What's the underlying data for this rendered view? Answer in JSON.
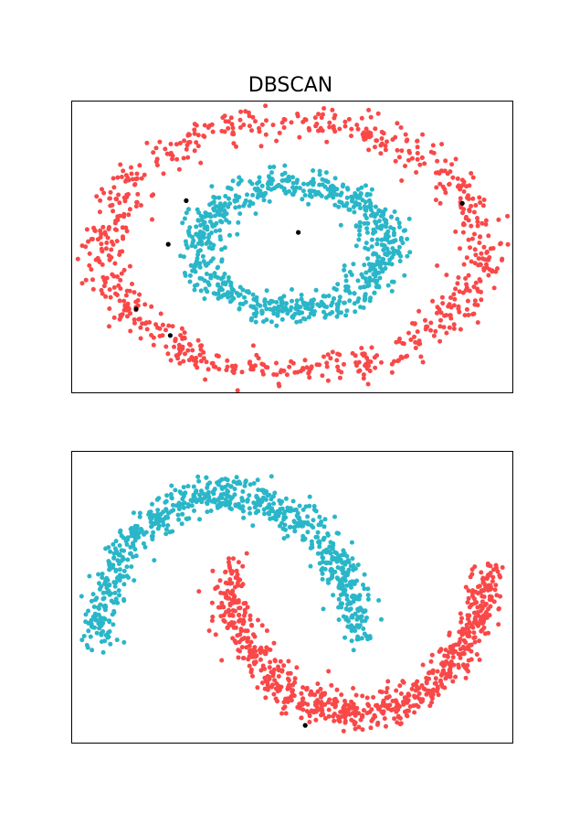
{
  "figure": {
    "title": "DBSCAN"
  },
  "colors": {
    "cluster_red": "#f94848",
    "cluster_teal": "#2ab6c8",
    "noise": "#000000"
  },
  "chart_data": [
    {
      "type": "scatter",
      "title": "DBSCAN",
      "xlabel": "",
      "ylabel": "",
      "xlim": [
        -1.1,
        1.1
      ],
      "ylim": [
        -1.1,
        1.1
      ],
      "grid": false,
      "legend": "none",
      "ticks_visible": false,
      "series": [
        {
          "color": "#f94848",
          "shape": "outer ring",
          "center": [
            0,
            0
          ],
          "radius": 0.94,
          "noise_std": 0.06,
          "approx_count": 750
        },
        {
          "color": "#2ab6c8",
          "shape": "inner ring",
          "center": [
            0,
            0
          ],
          "radius": 0.47,
          "noise_std": 0.06,
          "approx_count": 750
        }
      ],
      "noise_points": [
        [
          -0.53,
          0.35
        ],
        [
          -0.62,
          0.02
        ],
        [
          -0.78,
          -0.47
        ],
        [
          -0.61,
          -0.67
        ],
        [
          0.03,
          0.11
        ],
        [
          0.85,
          0.33
        ]
      ]
    },
    {
      "type": "scatter",
      "title": "",
      "xlabel": "",
      "ylabel": "",
      "xlim": [
        -1.2,
        2.2
      ],
      "ylim": [
        -0.72,
        1.3
      ],
      "grid": false,
      "legend": "none",
      "ticks_visible": false,
      "series": [
        {
          "color": "#2ab6c8",
          "shape": "upper moon",
          "center": [
            0,
            0
          ],
          "radius": 1.0,
          "angle_range_deg": [
            0,
            180
          ],
          "noise_std": 0.07,
          "approx_count": 750
        },
        {
          "color": "#f94848",
          "shape": "lower moon",
          "center": [
            1,
            0.5
          ],
          "radius": 1.0,
          "angle_range_deg": [
            180,
            360
          ],
          "noise_std": 0.07,
          "approx_count": 750
        }
      ],
      "noise_points": [
        [
          0.6,
          -0.6
        ]
      ]
    }
  ]
}
